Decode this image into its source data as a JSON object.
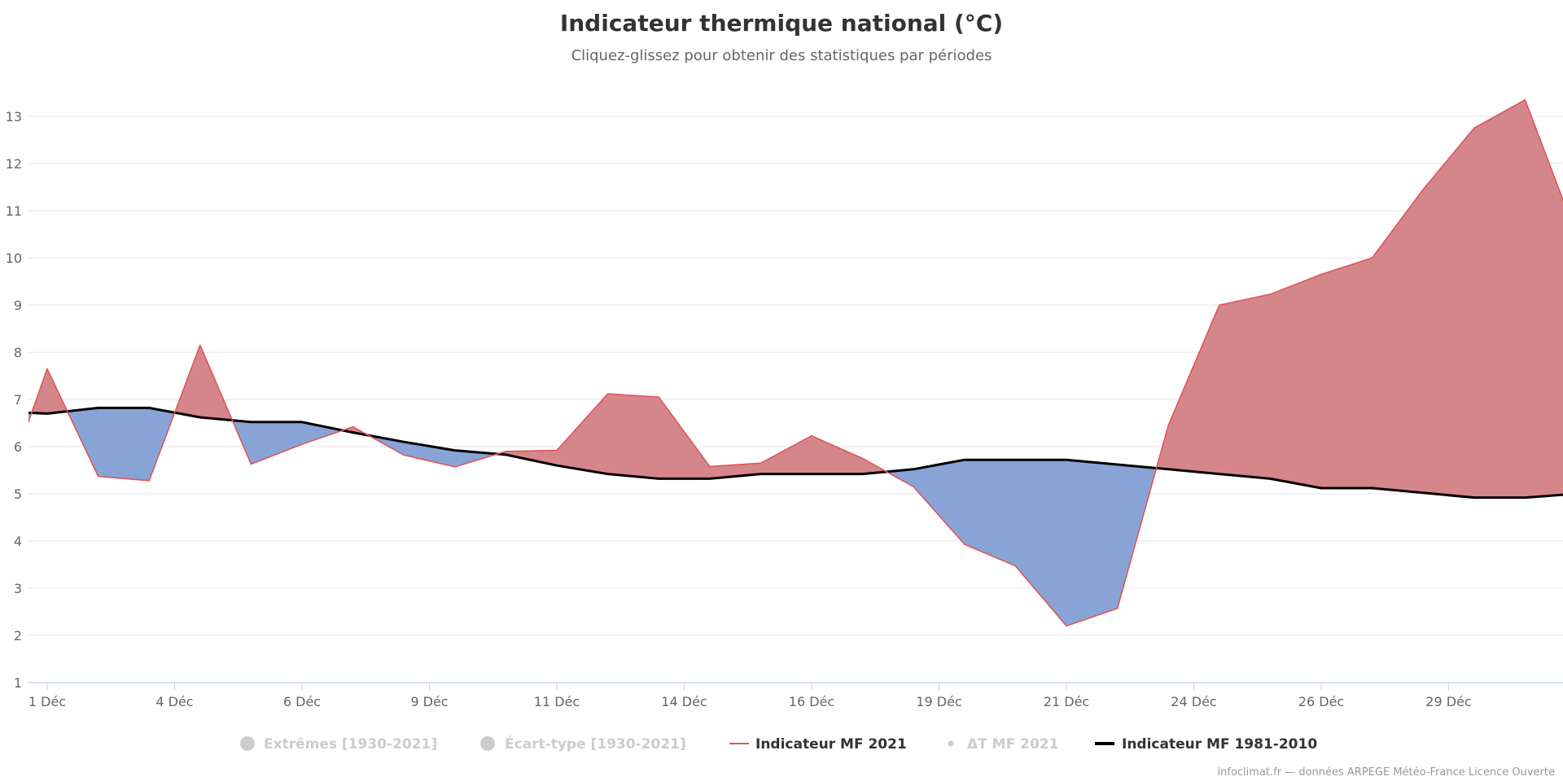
{
  "chart_data": {
    "type": "area",
    "title": "Indicateur thermique national (°C)",
    "subtitle": "Cliquez-glissez pour obtenir des statistiques par périodes",
    "xlabel": "",
    "ylabel": "",
    "x_unit": "day of December",
    "xlim": [
      0.6,
      30.77
    ],
    "ylim": [
      1,
      13
    ],
    "y_ticks": [
      1,
      2,
      3,
      4,
      5,
      6,
      7,
      8,
      9,
      10,
      11,
      12,
      13
    ],
    "x_ticks": [
      {
        "value": 1,
        "label": "1 Déc"
      },
      {
        "value": 3.5,
        "label": "4 Déc"
      },
      {
        "value": 6,
        "label": "6 Déc"
      },
      {
        "value": 8.5,
        "label": "9 Déc"
      },
      {
        "value": 11,
        "label": "11 Déc"
      },
      {
        "value": 13.5,
        "label": "14 Déc"
      },
      {
        "value": 16,
        "label": "16 Déc"
      },
      {
        "value": 18.5,
        "label": "19 Déc"
      },
      {
        "value": 21,
        "label": "21 Déc"
      },
      {
        "value": 23.5,
        "label": "24 Déc"
      },
      {
        "value": 26,
        "label": "26 Déc"
      },
      {
        "value": 28.5,
        "label": "29 Déc"
      }
    ],
    "grid": true,
    "legend_position": "bottom",
    "x": [
      0,
      1,
      2,
      3,
      4,
      5,
      6,
      7,
      8,
      9,
      10,
      11,
      12,
      13,
      14,
      15,
      16,
      17,
      18,
      19,
      20,
      21,
      22,
      23,
      24,
      25,
      26,
      27,
      28,
      29,
      30,
      31
    ],
    "series": [
      {
        "name": "Indicateur MF 2021",
        "color": "#e0555b",
        "values": [
          4.6,
          7.65,
          5.37,
          5.28,
          8.15,
          5.63,
          6.05,
          6.42,
          5.82,
          5.57,
          5.9,
          5.92,
          7.12,
          7.05,
          5.58,
          5.65,
          6.23,
          5.75,
          5.15,
          3.93,
          3.47,
          2.2,
          2.57,
          6.45,
          9.0,
          9.23,
          9.65,
          10.0,
          11.45,
          12.75,
          13.35,
          10.5
        ]
      },
      {
        "name": "Indicateur MF 1981-2010",
        "color": "#000000",
        "values": [
          6.75,
          6.7,
          6.82,
          6.82,
          6.62,
          6.52,
          6.52,
          6.3,
          6.1,
          5.92,
          5.83,
          5.6,
          5.42,
          5.32,
          5.32,
          5.42,
          5.42,
          5.42,
          5.52,
          5.72,
          5.72,
          5.72,
          5.62,
          5.52,
          5.42,
          5.32,
          5.12,
          5.12,
          5.02,
          4.92,
          4.92,
          5.0
        ]
      }
    ],
    "fill_above_color": "#d5868b",
    "fill_below_color": "#88a4d6"
  },
  "legend": [
    {
      "label": "Extrêmes [1930-2021]",
      "symbol": "circle",
      "color": "#cccccc",
      "enabled": false
    },
    {
      "label": "Écart-type [1930-2021]",
      "symbol": "circle",
      "color": "#cccccc",
      "enabled": false
    },
    {
      "label": "Indicateur MF 2021",
      "symbol": "line",
      "color": "#e0555b",
      "enabled": true
    },
    {
      "label": "ΔT MF 2021",
      "symbol": "dot",
      "color": "#cccccc",
      "enabled": false
    },
    {
      "label": "Indicateur MF 1981-2010",
      "symbol": "line",
      "color": "#000000",
      "enabled": true
    }
  ],
  "credits": "infoclimat.fr — données ARPEGE Météo-France Licence Ouverte"
}
